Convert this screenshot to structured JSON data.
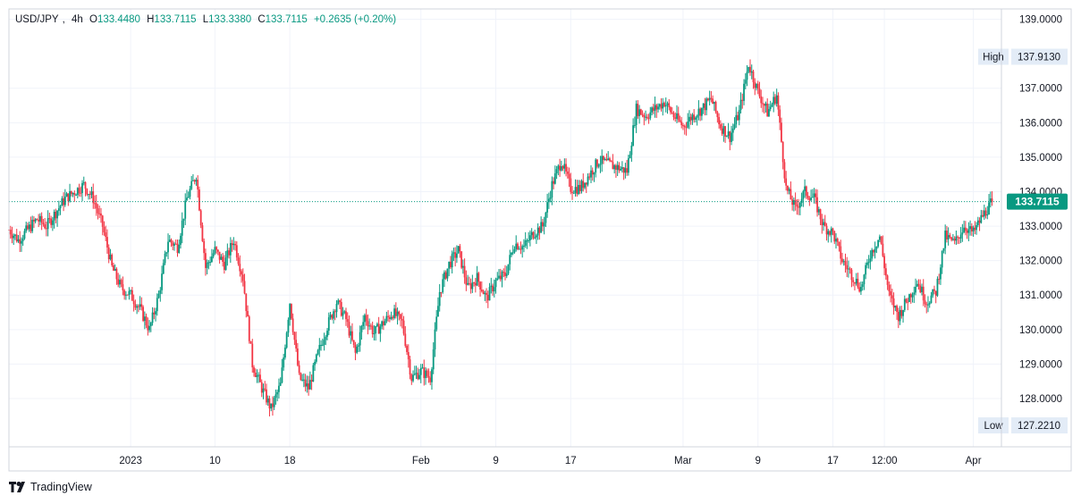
{
  "chart_data": {
    "type": "candlestick",
    "symbol": "USD/JPY",
    "interval": "4h",
    "ohlc_header": {
      "open_label": "O",
      "open": "133.4480",
      "high_label": "H",
      "high": "133.7115",
      "low_label": "L",
      "low": "133.3380",
      "close_label": "C",
      "close": "133.7115",
      "change": "+0.2635 (+0.20%)"
    },
    "ylim": [
      126.6,
      139.3
    ],
    "y_ticks": [
      "139.0000",
      "137.0000",
      "136.0000",
      "135.0000",
      "134.0000",
      "133.0000",
      "132.0000",
      "131.0000",
      "130.0000",
      "129.0000",
      "128.0000"
    ],
    "x_ticks": [
      {
        "label": "2023",
        "x": "2023-01-01"
      },
      {
        "label": "10",
        "x": "2023-01-10"
      },
      {
        "label": "18",
        "x": "2023-01-18"
      },
      {
        "label": "Feb",
        "x": "2023-02-01"
      },
      {
        "label": "9",
        "x": "2023-02-09"
      },
      {
        "label": "17",
        "x": "2023-02-17"
      },
      {
        "label": "Mar",
        "x": "2023-03-01"
      },
      {
        "label": "9",
        "x": "2023-03-09"
      },
      {
        "label": "17",
        "x": "2023-03-17"
      },
      {
        "label": "12:00",
        "x": "2023-03-22 12:00"
      },
      {
        "label": "Apr",
        "x": "2023-04-01"
      }
    ],
    "x_range": [
      "2022-12-19",
      "2023-04-04"
    ],
    "last_price": {
      "label": "133.7115",
      "value": 133.7115
    },
    "high_marker": {
      "label": "High",
      "value_text": "137.9130",
      "value": 137.913
    },
    "low_marker": {
      "label": "Low",
      "value_text": "127.2210",
      "value": 127.221
    },
    "close_path": [
      {
        "x": "2022-12-19",
        "y": 132.9
      },
      {
        "x": "2022-12-20",
        "y": 132.6
      },
      {
        "x": "2022-12-21",
        "y": 132.9
      },
      {
        "x": "2022-12-22",
        "y": 133.2
      },
      {
        "x": "2022-12-23",
        "y": 133.0
      },
      {
        "x": "2022-12-25",
        "y": 133.8
      },
      {
        "x": "2022-12-27",
        "y": 134.2
      },
      {
        "x": "2022-12-28",
        "y": 133.8
      },
      {
        "x": "2022-12-29",
        "y": 133.0
      },
      {
        "x": "2022-12-30",
        "y": 131.8
      },
      {
        "x": "2022-12-31",
        "y": 131.2
      },
      {
        "x": "2023-01-01",
        "y": 131.0
      },
      {
        "x": "2023-01-02",
        "y": 130.6
      },
      {
        "x": "2023-01-03",
        "y": 130.0
      },
      {
        "x": "2023-01-04",
        "y": 131.0
      },
      {
        "x": "2023-01-05",
        "y": 132.6
      },
      {
        "x": "2023-01-06",
        "y": 132.4
      },
      {
        "x": "2023-01-07",
        "y": 133.8
      },
      {
        "x": "2023-01-08",
        "y": 134.5
      },
      {
        "x": "2023-01-09",
        "y": 131.8
      },
      {
        "x": "2023-01-10",
        "y": 132.3
      },
      {
        "x": "2023-01-11",
        "y": 131.9
      },
      {
        "x": "2023-01-12",
        "y": 132.6
      },
      {
        "x": "2023-01-13",
        "y": 131.5
      },
      {
        "x": "2023-01-14",
        "y": 129.0
      },
      {
        "x": "2023-01-15",
        "y": 128.3
      },
      {
        "x": "2023-01-16",
        "y": 127.7
      },
      {
        "x": "2023-01-17",
        "y": 128.4
      },
      {
        "x": "2023-01-18",
        "y": 130.8
      },
      {
        "x": "2023-01-19",
        "y": 128.6
      },
      {
        "x": "2023-01-20",
        "y": 128.3
      },
      {
        "x": "2023-01-21",
        "y": 129.3
      },
      {
        "x": "2023-01-22",
        "y": 130.1
      },
      {
        "x": "2023-01-23",
        "y": 130.8
      },
      {
        "x": "2023-01-24",
        "y": 130.3
      },
      {
        "x": "2023-01-25",
        "y": 129.3
      },
      {
        "x": "2023-01-26",
        "y": 130.4
      },
      {
        "x": "2023-01-27",
        "y": 129.9
      },
      {
        "x": "2023-01-28",
        "y": 130.2
      },
      {
        "x": "2023-01-29",
        "y": 130.5
      },
      {
        "x": "2023-01-30",
        "y": 130.2
      },
      {
        "x": "2023-01-31",
        "y": 128.6
      },
      {
        "x": "2023-02-01",
        "y": 128.8
      },
      {
        "x": "2023-02-02",
        "y": 128.6
      },
      {
        "x": "2023-02-03",
        "y": 131.1
      },
      {
        "x": "2023-02-04",
        "y": 131.9
      },
      {
        "x": "2023-02-05",
        "y": 132.3
      },
      {
        "x": "2023-02-06",
        "y": 131.2
      },
      {
        "x": "2023-02-07",
        "y": 131.5
      },
      {
        "x": "2023-02-08",
        "y": 130.9
      },
      {
        "x": "2023-02-09",
        "y": 131.4
      },
      {
        "x": "2023-02-10",
        "y": 131.6
      },
      {
        "x": "2023-02-11",
        "y": 132.5
      },
      {
        "x": "2023-02-12",
        "y": 132.4
      },
      {
        "x": "2023-02-13",
        "y": 132.8
      },
      {
        "x": "2023-02-14",
        "y": 133.0
      },
      {
        "x": "2023-02-15",
        "y": 134.2
      },
      {
        "x": "2023-02-16",
        "y": 134.9
      },
      {
        "x": "2023-02-17",
        "y": 134.1
      },
      {
        "x": "2023-02-18",
        "y": 134.1
      },
      {
        "x": "2023-02-19",
        "y": 134.5
      },
      {
        "x": "2023-02-20",
        "y": 134.9
      },
      {
        "x": "2023-02-21",
        "y": 134.8
      },
      {
        "x": "2023-02-22",
        "y": 134.7
      },
      {
        "x": "2023-02-23",
        "y": 134.6
      },
      {
        "x": "2023-02-24",
        "y": 136.4
      },
      {
        "x": "2023-02-25",
        "y": 136.2
      },
      {
        "x": "2023-02-26",
        "y": 136.4
      },
      {
        "x": "2023-02-27",
        "y": 136.6
      },
      {
        "x": "2023-02-28",
        "y": 136.2
      },
      {
        "x": "2023-03-01",
        "y": 135.9
      },
      {
        "x": "2023-03-02",
        "y": 136.2
      },
      {
        "x": "2023-03-03",
        "y": 136.4
      },
      {
        "x": "2023-03-04",
        "y": 136.7
      },
      {
        "x": "2023-03-05",
        "y": 135.9
      },
      {
        "x": "2023-03-06",
        "y": 135.6
      },
      {
        "x": "2023-03-07",
        "y": 136.3
      },
      {
        "x": "2023-03-08",
        "y": 137.7
      },
      {
        "x": "2023-03-09",
        "y": 136.9
      },
      {
        "x": "2023-03-10",
        "y": 136.3
      },
      {
        "x": "2023-03-11",
        "y": 136.8
      },
      {
        "x": "2023-03-12",
        "y": 134.1
      },
      {
        "x": "2023-03-13",
        "y": 133.5
      },
      {
        "x": "2023-03-14",
        "y": 134.0
      },
      {
        "x": "2023-03-15",
        "y": 133.8
      },
      {
        "x": "2023-03-16",
        "y": 133.0
      },
      {
        "x": "2023-03-17",
        "y": 132.8
      },
      {
        "x": "2023-03-18",
        "y": 132.0
      },
      {
        "x": "2023-03-19",
        "y": 131.6
      },
      {
        "x": "2023-03-20",
        "y": 131.2
      },
      {
        "x": "2023-03-21",
        "y": 132.2
      },
      {
        "x": "2023-03-22",
        "y": 132.7
      },
      {
        "x": "2023-03-23",
        "y": 131.0
      },
      {
        "x": "2023-03-24",
        "y": 130.4
      },
      {
        "x": "2023-03-25",
        "y": 130.9
      },
      {
        "x": "2023-03-26",
        "y": 131.4
      },
      {
        "x": "2023-03-27",
        "y": 130.8
      },
      {
        "x": "2023-03-28",
        "y": 131.1
      },
      {
        "x": "2023-03-29",
        "y": 132.7
      },
      {
        "x": "2023-03-30",
        "y": 132.5
      },
      {
        "x": "2023-03-31",
        "y": 133.0
      },
      {
        "x": "2023-04-01",
        "y": 132.8
      },
      {
        "x": "2023-04-02",
        "y": 133.3
      },
      {
        "x": "2023-04-03",
        "y": 133.7115
      }
    ],
    "colors": {
      "up": "#089981",
      "down": "#f23645",
      "grid": "#f0f3fa",
      "axis_text": "#131722",
      "marker_bg": "#e3ecf7"
    }
  },
  "branding": {
    "text": "TradingView"
  }
}
